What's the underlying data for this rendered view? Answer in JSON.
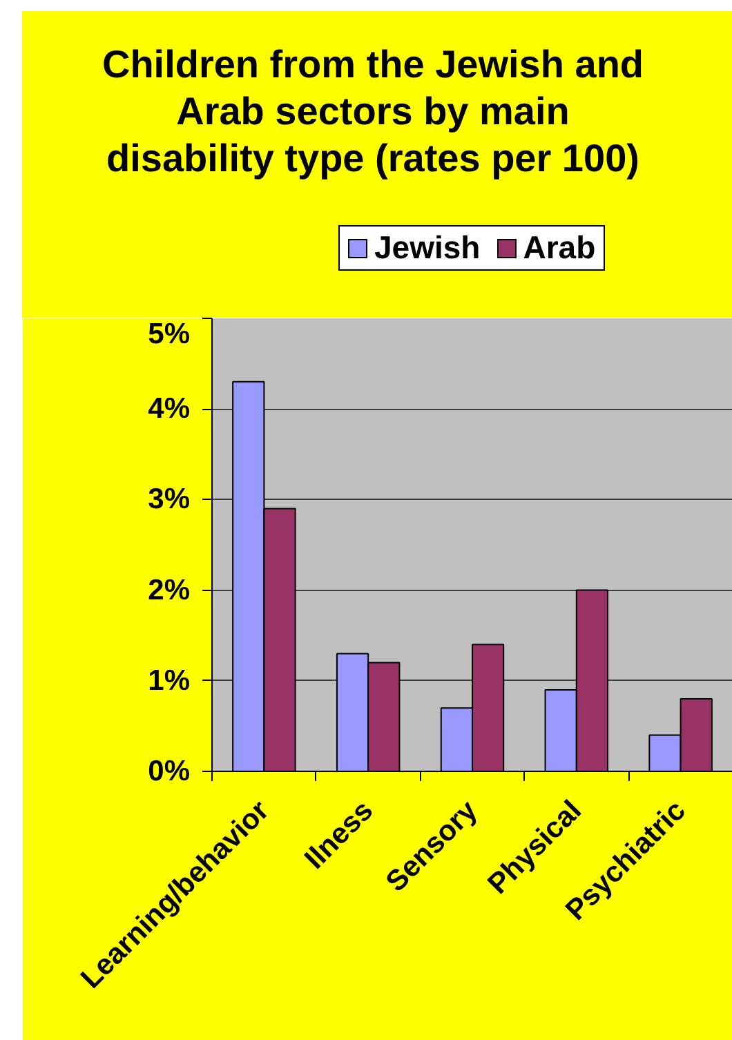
{
  "chart_data": {
    "type": "bar",
    "title": "Children from the Jewish and\nArab sectors by main\ndisability type (rates per 100)",
    "categories": [
      "Learning/behavior",
      "Ilness",
      "Sensory",
      "Physical",
      "Psychiatric"
    ],
    "series": [
      {
        "name": "Jewish",
        "color": "#9999ff",
        "values": [
          4.3,
          1.3,
          0.7,
          0.9,
          0.4
        ]
      },
      {
        "name": "Arab",
        "color": "#993366",
        "values": [
          2.9,
          1.2,
          1.4,
          2.0,
          0.8
        ]
      }
    ],
    "ylim": [
      0,
      5
    ],
    "yticks": [
      {
        "value": 0,
        "label": "0%"
      },
      {
        "value": 1,
        "label": "1%"
      },
      {
        "value": 2,
        "label": "2%"
      },
      {
        "value": 3,
        "label": "3%"
      },
      {
        "value": 4,
        "label": "4%"
      },
      {
        "value": 5,
        "label": "5%"
      }
    ],
    "grid": "y",
    "legend": "top"
  }
}
